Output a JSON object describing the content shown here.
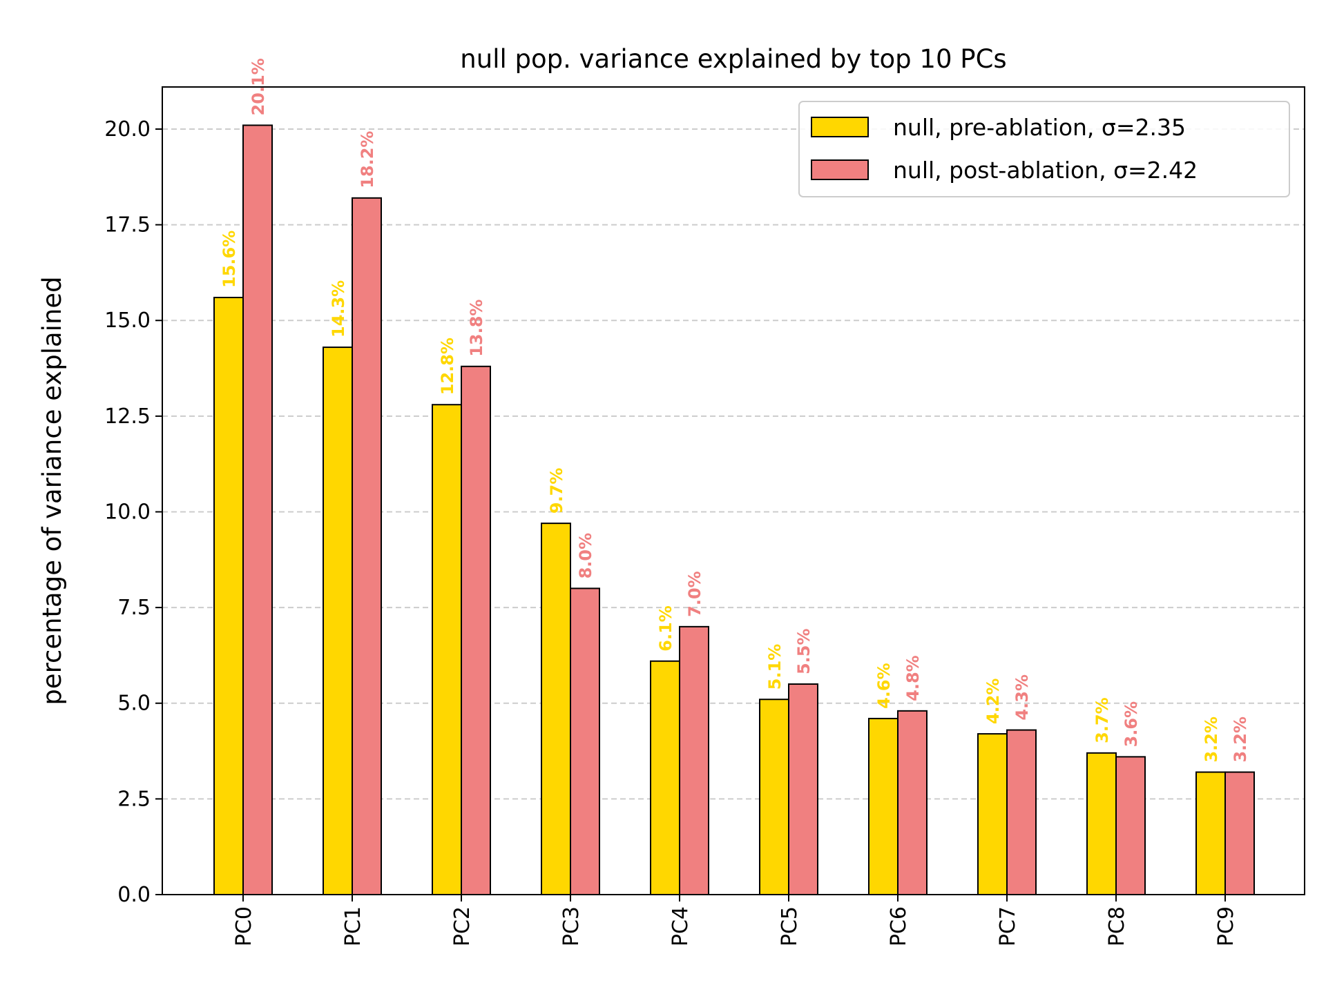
{
  "chart_data": {
    "type": "bar",
    "title": "null pop. variance explained by top 10 PCs",
    "xlabel": "",
    "ylabel": "percentage of variance explained",
    "categories": [
      "PC0",
      "PC1",
      "PC2",
      "PC3",
      "PC4",
      "PC5",
      "PC6",
      "PC7",
      "PC8",
      "PC9"
    ],
    "series": [
      {
        "name": "null, pre-ablation, σ=2.35",
        "color": "#FFD700",
        "values": [
          15.6,
          14.3,
          12.8,
          9.7,
          6.1,
          5.1,
          4.6,
          4.2,
          3.7,
          3.2
        ],
        "labels": [
          "15.6%",
          "14.3%",
          "12.8%",
          "9.7%",
          "6.1%",
          "5.1%",
          "4.6%",
          "4.2%",
          "3.7%",
          "3.2%"
        ]
      },
      {
        "name": "null, post-ablation, σ=2.42",
        "color": "#F08080",
        "values": [
          20.1,
          18.2,
          13.8,
          8.0,
          7.0,
          5.5,
          4.8,
          4.3,
          3.6,
          3.2
        ],
        "labels": [
          "20.1%",
          "18.2%",
          "13.8%",
          "8.0%",
          "7.0%",
          "5.5%",
          "4.8%",
          "4.3%",
          "3.6%",
          "3.2%"
        ]
      }
    ],
    "ylim": [
      0,
      21.1
    ],
    "yticks": [
      0.0,
      2.5,
      5.0,
      7.5,
      10.0,
      12.5,
      15.0,
      17.5,
      20.0
    ],
    "ytick_labels": [
      "0.0",
      "2.5",
      "5.0",
      "7.5",
      "10.0",
      "12.5",
      "15.0",
      "17.5",
      "20.0"
    ],
    "grid": "y, dashed",
    "legend_position": "top-right",
    "bar_edge_color": "#000000",
    "grid_color": "#cccccc"
  }
}
